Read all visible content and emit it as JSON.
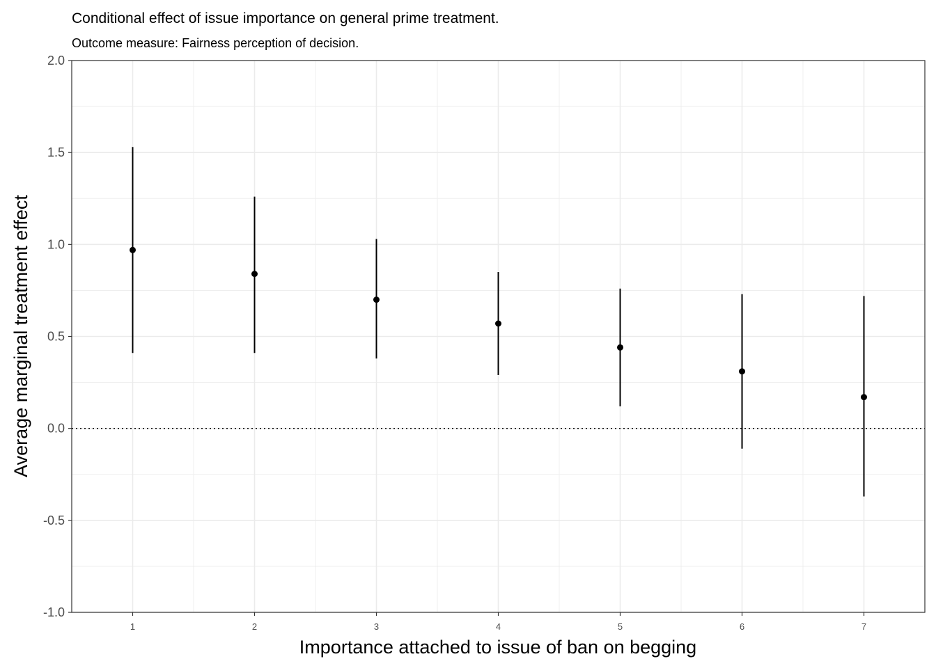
{
  "chart_data": {
    "type": "scatter",
    "title": "Conditional effect of issue importance on general prime treatment.",
    "subtitle": "Outcome measure: Fairness perception of decision.",
    "xlabel": "Importance attached to issue of ban on begging",
    "ylabel": "Average marginal treatment effect",
    "xlim": [
      0.5,
      7.5
    ],
    "ylim": [
      -1.0,
      2.0
    ],
    "x_ticks": [
      "1",
      "2",
      "3",
      "4",
      "5",
      "6",
      "7"
    ],
    "y_ticks": [
      "-1.0",
      "-0.5",
      "0.0",
      "0.5",
      "1.0",
      "1.5",
      "2.0"
    ],
    "y_tick_values": [
      -1.0,
      -0.5,
      0.0,
      0.5,
      1.0,
      1.5,
      2.0
    ],
    "grid": true,
    "reference_line": {
      "y": 0.0,
      "style": "dotted"
    },
    "x": [
      1,
      2,
      3,
      4,
      5,
      6,
      7
    ],
    "estimate": [
      0.97,
      0.84,
      0.7,
      0.57,
      0.44,
      0.31,
      0.17
    ],
    "ci_lower": [
      0.41,
      0.41,
      0.38,
      0.29,
      0.12,
      -0.11,
      -0.37
    ],
    "ci_upper": [
      1.53,
      1.26,
      1.03,
      0.85,
      0.76,
      0.73,
      0.72
    ],
    "colors": {
      "points": "#000000",
      "grid": "#ebebeb",
      "panel_border": "#333333",
      "tick_text": "#4d4d4d"
    }
  }
}
